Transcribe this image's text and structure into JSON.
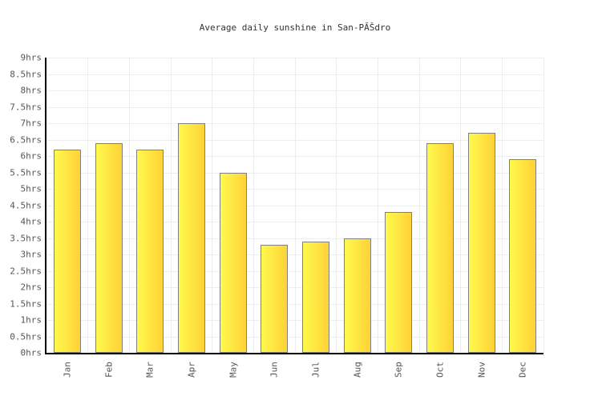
{
  "title": "Average daily sunshine in San-PĂŠdro",
  "chart_data": {
    "type": "bar",
    "title": "Average daily sunshine in San-PĂŠdro",
    "categories": [
      "Jan",
      "Feb",
      "Mar",
      "Apr",
      "May",
      "Jun",
      "Jul",
      "Aug",
      "Sep",
      "Oct",
      "Nov",
      "Dec"
    ],
    "values": [
      6.2,
      6.4,
      6.2,
      7.0,
      5.5,
      3.3,
      3.4,
      3.5,
      4.3,
      6.4,
      6.7,
      5.9
    ],
    "unit": "hrs",
    "xlabel": "",
    "ylabel": "",
    "ylim": [
      0,
      9
    ],
    "ytick_step": 0.5,
    "ytick_labels": [
      "0hrs",
      "0.5hrs",
      "1hrs",
      "1.5hrs",
      "2hrs",
      "2.5hrs",
      "3hrs",
      "3.5hrs",
      "4hrs",
      "4.5hrs",
      "5hrs",
      "5.5hrs",
      "6hrs",
      "6.5hrs",
      "7hrs",
      "7.5hrs",
      "8hrs",
      "8.5hrs",
      "9hrs"
    ],
    "grid": true,
    "legend_position": "none"
  },
  "colors": {
    "background": "#ffffff",
    "bar_gradient_left": "#fff94c",
    "bar_gradient_right": "#ffd238",
    "bar_border": "#808080",
    "axis_line": "#000000",
    "gridline": "#eeeeee",
    "title_text": "#333333",
    "tick_text": "#555555"
  }
}
